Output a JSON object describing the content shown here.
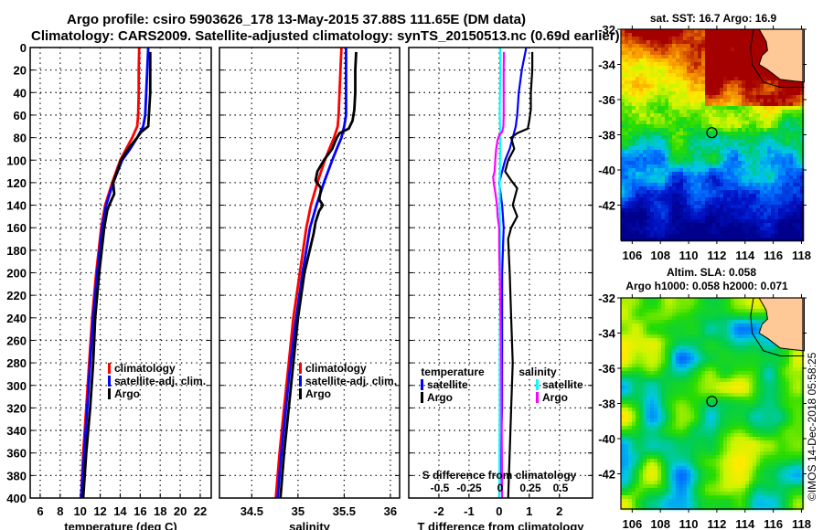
{
  "title_line1": "Argo profile: csiro 5903626_178 13-May-2015 37.88S 111.65E (DM data)",
  "title_line2": "Climatology: CARS2009. Satellite-adjusted climatology: synTS_20150513.nc (0.69d earlier)",
  "timestamp": "©IMOS 14-Dec-2018 05:58:25",
  "chart_data": [
    {
      "type": "line",
      "name": "temperature-profile",
      "xlabel": "temperature (deg C)",
      "ylabel": "",
      "xlim": [
        5.0,
        23.1
      ],
      "ylim": [
        400,
        0
      ],
      "xticks": [
        6,
        8,
        10,
        12,
        14,
        16,
        18,
        20,
        22
      ],
      "yticks": [
        0,
        20,
        40,
        60,
        80,
        100,
        120,
        140,
        160,
        180,
        200,
        220,
        240,
        260,
        280,
        300,
        320,
        340,
        360,
        380,
        400
      ],
      "grid": true,
      "legend": {
        "placement": "lower-right",
        "entries": [
          {
            "label": "climatology",
            "color": "#ff0000"
          },
          {
            "label": "satellite-adj. clim.",
            "color": "#0000ff"
          },
          {
            "label": "Argo",
            "color": "#000000"
          }
        ]
      },
      "series": [
        {
          "name": "climatology",
          "color": "#ff0000",
          "depth": [
            0,
            20,
            40,
            60,
            70,
            80,
            90,
            100,
            120,
            140,
            160,
            200,
            240,
            280,
            320,
            360,
            400
          ],
          "values": [
            15.9,
            15.85,
            15.85,
            15.8,
            15.7,
            15.2,
            14.6,
            14.0,
            13.2,
            12.5,
            12.1,
            11.6,
            11.2,
            10.9,
            10.6,
            10.3,
            10.1
          ]
        },
        {
          "name": "satellite-adj. clim.",
          "color": "#0000ff",
          "depth": [
            0,
            20,
            40,
            60,
            70,
            80,
            90,
            100,
            120,
            140,
            160,
            200,
            240,
            280,
            320,
            360,
            400
          ],
          "values": [
            16.8,
            16.7,
            16.6,
            16.5,
            16.3,
            15.7,
            15.0,
            14.2,
            13.3,
            12.6,
            12.2,
            11.7,
            11.3,
            11.0,
            10.7,
            10.4,
            10.1
          ]
        },
        {
          "name": "Argo",
          "color": "#000000",
          "depth": [
            4,
            20,
            40,
            55,
            70,
            75,
            80,
            90,
            100,
            120,
            130,
            140,
            145,
            160,
            200,
            240,
            280,
            320,
            360,
            400
          ],
          "values": [
            17.0,
            17.0,
            17.0,
            16.9,
            16.8,
            16.1,
            15.7,
            14.8,
            14.1,
            13.3,
            13.4,
            12.9,
            12.7,
            12.4,
            11.9,
            11.5,
            11.3,
            11.0,
            10.6,
            10.3
          ]
        }
      ]
    },
    {
      "type": "line",
      "name": "salinity-profile",
      "xlabel": "salinity",
      "ylabel": "",
      "xlim": [
        34.15,
        36.1
      ],
      "ylim": [
        400,
        0
      ],
      "xticks": [
        34.5,
        35,
        35.5,
        36
      ],
      "grid": true,
      "legend": {
        "placement": "lower-right",
        "entries": [
          {
            "label": "climatology",
            "color": "#ff0000"
          },
          {
            "label": "satellite-adj. clim.",
            "color": "#0000ff"
          },
          {
            "label": "Argo",
            "color": "#000000"
          }
        ]
      },
      "series": [
        {
          "name": "climatology",
          "color": "#ff0000",
          "depth": [
            0,
            20,
            40,
            60,
            70,
            80,
            90,
            100,
            120,
            140,
            160,
            200,
            240,
            280,
            320,
            360,
            400
          ],
          "values": [
            35.47,
            35.46,
            35.45,
            35.44,
            35.43,
            35.39,
            35.34,
            35.29,
            35.21,
            35.14,
            35.09,
            35.02,
            34.95,
            34.9,
            34.85,
            34.8,
            34.76
          ]
        },
        {
          "name": "satellite-adj. clim.",
          "color": "#0000ff",
          "depth": [
            0,
            20,
            40,
            60,
            70,
            80,
            90,
            100,
            120,
            140,
            160,
            200,
            240,
            280,
            320,
            360,
            400
          ],
          "values": [
            35.52,
            35.52,
            35.52,
            35.52,
            35.5,
            35.47,
            35.42,
            35.37,
            35.28,
            35.2,
            35.13,
            35.05,
            34.98,
            34.92,
            34.87,
            34.82,
            34.78
          ]
        },
        {
          "name": "Argo",
          "color": "#000000",
          "depth": [
            4,
            20,
            40,
            55,
            65,
            72,
            76,
            80,
            90,
            100,
            110,
            118,
            125,
            135,
            140,
            145,
            155,
            165,
            200,
            240,
            280,
            320,
            360,
            400
          ],
          "values": [
            35.63,
            35.62,
            35.62,
            35.61,
            35.59,
            35.55,
            35.45,
            35.42,
            35.37,
            35.28,
            35.21,
            35.19,
            35.25,
            35.23,
            35.27,
            35.23,
            35.19,
            35.17,
            35.07,
            35.0,
            34.95,
            34.9,
            34.85,
            34.81
          ]
        }
      ]
    },
    {
      "type": "line",
      "name": "difference-profile",
      "xlabel": "T difference from climatology",
      "secondary_xlabel": "S difference from climatology",
      "xlim": [
        -3.0,
        3.1
      ],
      "ylim": [
        400,
        0
      ],
      "xticks": [
        -2,
        -1,
        0,
        1,
        2
      ],
      "secondary_xticks": [
        -0.5,
        -0.25,
        0,
        0.25,
        0.5
      ],
      "grid": true,
      "legend": {
        "placement": "lower-center",
        "groups": [
          {
            "title": "temperature",
            "entries": [
              {
                "label": "satellite",
                "color": "#0000ff"
              },
              {
                "label": "Argo",
                "color": "#000000"
              }
            ]
          },
          {
            "title": "salinity",
            "entries": [
              {
                "label": "satellite",
                "color": "#00ffff"
              },
              {
                "label": "Argo",
                "color": "#ff00ff"
              }
            ]
          }
        ]
      },
      "series": [
        {
          "name": "temperature satellite",
          "color": "#0000ff",
          "depth": [
            0,
            20,
            40,
            60,
            70,
            80,
            90,
            100,
            110,
            120,
            140,
            160,
            200,
            240,
            280,
            320,
            360,
            400
          ],
          "values": [
            0.9,
            0.75,
            0.65,
            0.6,
            0.55,
            0.45,
            0.35,
            0.2,
            0.1,
            0.0,
            0.1,
            0.15,
            0.1,
            0.1,
            0.1,
            0.1,
            0.05,
            0.0
          ]
        },
        {
          "name": "temperature Argo",
          "color": "#000000",
          "depth": [
            4,
            20,
            40,
            55,
            65,
            72,
            76,
            80,
            90,
            100,
            110,
            118,
            125,
            135,
            140,
            150,
            160,
            170,
            200,
            240,
            280,
            320,
            360,
            400
          ],
          "values": [
            1.1,
            1.1,
            1.05,
            1.05,
            1.0,
            0.95,
            0.6,
            0.4,
            0.5,
            0.3,
            0.2,
            0.4,
            0.6,
            0.5,
            0.45,
            0.6,
            0.4,
            0.3,
            0.35,
            0.4,
            0.45,
            0.4,
            0.35,
            0.3
          ]
        },
        {
          "name": "salinity satellite",
          "color": "#00ffff",
          "depth": [
            0,
            20,
            40,
            60,
            80,
            100,
            120,
            140,
            160,
            200,
            240,
            280,
            320,
            360,
            400
          ],
          "values": [
            0.03,
            0.04,
            0.03,
            0.02,
            0.04,
            0.03,
            0.02,
            0.02,
            0.03,
            0.04,
            0.03,
            0.02,
            0.02,
            0.01,
            0.01
          ]
        },
        {
          "name": "salinity Argo",
          "color": "#ff00ff",
          "depth": [
            4,
            20,
            40,
            60,
            70,
            75,
            78,
            82,
            90,
            100,
            110,
            115,
            120,
            130,
            140,
            150,
            160,
            180,
            200,
            240,
            280,
            320,
            360,
            400
          ],
          "values": [
            0.16,
            0.15,
            0.15,
            0.15,
            0.14,
            0.1,
            0.0,
            -0.05,
            -0.1,
            -0.13,
            -0.15,
            -0.2,
            -0.18,
            -0.12,
            -0.07,
            -0.05,
            0.0,
            0.0,
            0.02,
            0.05,
            0.07,
            0.08,
            0.09,
            0.1
          ]
        }
      ]
    },
    {
      "type": "heatmap",
      "name": "sst-map",
      "title": "sat. SST: 16.7 Argo: 16.9",
      "xlim": [
        105.2,
        118.1
      ],
      "ylim": [
        -44,
        -32
      ],
      "xticks": [
        106,
        108,
        110,
        112,
        114,
        116,
        118
      ],
      "yticks": [
        -32,
        -34,
        -36,
        -38,
        -40,
        -42
      ],
      "marker": {
        "lon": 111.65,
        "lat": -37.88
      },
      "land_color": "#ffc896"
    },
    {
      "type": "heatmap",
      "name": "sla-map",
      "title_line1": "Altim. SLA: 0.058",
      "title_line2": "Argo h1000: 0.058 h2000: 0.071",
      "xlim": [
        105.2,
        118.1
      ],
      "ylim": [
        -44,
        -32
      ],
      "xticks": [
        106,
        108,
        110,
        112,
        114,
        116,
        118
      ],
      "yticks": [
        -32,
        -34,
        -36,
        -38,
        -40,
        -42
      ],
      "marker": {
        "lon": 111.65,
        "lat": -37.88
      },
      "land_color": "#ffc896"
    }
  ]
}
